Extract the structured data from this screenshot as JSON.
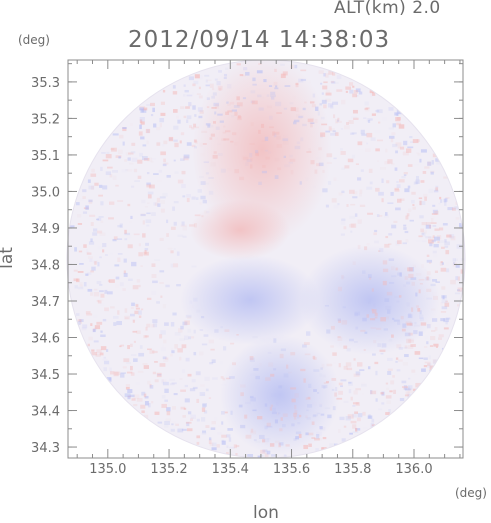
{
  "header": {
    "altitude_label": "ALT(km) 2.0",
    "timestamp": "2012/09/14 14:38:03"
  },
  "axes": {
    "x_title": "lon",
    "y_title": "lat",
    "x_unit": "(deg)",
    "y_unit": "(deg)"
  },
  "chart_data": {
    "type": "heatmap",
    "xlabel": "lon",
    "ylabel": "lat",
    "xlim": [
      134.87,
      136.16
    ],
    "ylim": [
      34.27,
      35.36
    ],
    "x_ticks": [
      135.0,
      135.2,
      135.4,
      135.6,
      135.8,
      136.0
    ],
    "x_tick_labels": [
      "135.0",
      "135.2",
      "135.4",
      "135.6",
      "135.8",
      "136.0"
    ],
    "y_ticks": [
      34.3,
      34.4,
      34.5,
      34.6,
      34.7,
      34.8,
      34.9,
      35.0,
      35.1,
      35.2,
      35.3
    ],
    "y_tick_labels": [
      "34.3",
      "34.4",
      "34.5",
      "34.6",
      "34.7",
      "34.8",
      "34.9",
      "35.0",
      "35.1",
      "35.2",
      "35.3"
    ],
    "colors": {
      "positive": "#f4b8b8",
      "negative": "#b8bff4",
      "neutral": "#f1eef6",
      "axis": "#8c8c8c"
    }
  }
}
